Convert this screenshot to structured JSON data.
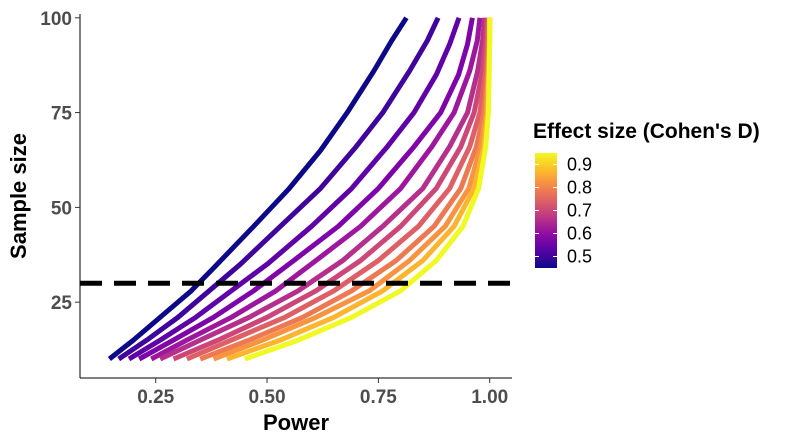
{
  "chart_data": {
    "type": "line",
    "xlabel": "Power",
    "ylabel": "Sample size",
    "xlim": [
      0.08,
      1.05
    ],
    "ylim": [
      5,
      101
    ],
    "x_ticks": [
      0.25,
      0.5,
      0.75,
      1.0
    ],
    "x_tick_labels": [
      "0.25",
      "0.50",
      "0.75",
      "1.00"
    ],
    "y_ticks": [
      25,
      50,
      75,
      100
    ],
    "y_tick_labels": [
      "25",
      "50",
      "75",
      "100"
    ],
    "grid": false,
    "legend": {
      "title": "Effect size (Cohen's D)",
      "position": "right",
      "type": "colorbar",
      "range": [
        0.45,
        0.95
      ],
      "ticks": [
        0.5,
        0.6,
        0.7,
        0.8,
        0.9
      ],
      "tick_labels": [
        "0.5",
        "0.6",
        "0.7",
        "0.8",
        "0.9"
      ],
      "palette": "plasma-truncated",
      "colors": [
        "#0d0887",
        "#5402a3",
        "#8b0aa5",
        "#b93289",
        "#db5c68",
        "#f48849",
        "#febd2a",
        "#f0f921"
      ]
    },
    "reference_line": {
      "y": 30,
      "style": "dashed",
      "color": "#000000"
    },
    "series": [
      {
        "d": 0.45,
        "color": "#0d0887",
        "points": [
          [
            0.146,
            10
          ],
          [
            0.2,
            15
          ],
          [
            0.27,
            22
          ],
          [
            0.33,
            28
          ],
          [
            0.38,
            34
          ],
          [
            0.47,
            45
          ],
          [
            0.55,
            55
          ],
          [
            0.62,
            65
          ],
          [
            0.68,
            75
          ],
          [
            0.74,
            86
          ],
          [
            0.78,
            94
          ],
          [
            0.813,
            100
          ]
        ]
      },
      {
        "d": 0.5,
        "color": "#3f049c",
        "points": [
          [
            0.167,
            10
          ],
          [
            0.23,
            15
          ],
          [
            0.3,
            21
          ],
          [
            0.37,
            28
          ],
          [
            0.44,
            35
          ],
          [
            0.53,
            45
          ],
          [
            0.62,
            55
          ],
          [
            0.7,
            66
          ],
          [
            0.76,
            75
          ],
          [
            0.82,
            86
          ],
          [
            0.86,
            94
          ],
          [
            0.884,
            100
          ]
        ]
      },
      {
        "d": 0.55,
        "color": "#5f01a6",
        "points": [
          [
            0.19,
            10
          ],
          [
            0.26,
            15
          ],
          [
            0.34,
            21
          ],
          [
            0.42,
            28
          ],
          [
            0.5,
            35
          ],
          [
            0.6,
            45
          ],
          [
            0.69,
            55
          ],
          [
            0.77,
            66
          ],
          [
            0.83,
            75
          ],
          [
            0.88,
            85
          ],
          [
            0.91,
            93
          ],
          [
            0.931,
            100
          ]
        ]
      },
      {
        "d": 0.6,
        "color": "#7e03a8",
        "points": [
          [
            0.213,
            10
          ],
          [
            0.29,
            15
          ],
          [
            0.38,
            21
          ],
          [
            0.47,
            28
          ],
          [
            0.56,
            36
          ],
          [
            0.66,
            45
          ],
          [
            0.75,
            55
          ],
          [
            0.83,
            66
          ],
          [
            0.89,
            75
          ],
          [
            0.93,
            85
          ],
          [
            0.95,
            93
          ],
          [
            0.961,
            100
          ]
        ]
      },
      {
        "d": 0.65,
        "color": "#9c179e",
        "points": [
          [
            0.24,
            10
          ],
          [
            0.32,
            15
          ],
          [
            0.42,
            21
          ],
          [
            0.52,
            28
          ],
          [
            0.61,
            36
          ],
          [
            0.71,
            45
          ],
          [
            0.8,
            55
          ],
          [
            0.87,
            66
          ],
          [
            0.92,
            75
          ],
          [
            0.955,
            86
          ],
          [
            0.972,
            94
          ],
          [
            0.978,
            100
          ]
        ]
      },
      {
        "d": 0.7,
        "color": "#b52f8c",
        "points": [
          [
            0.26,
            10
          ],
          [
            0.35,
            15
          ],
          [
            0.46,
            21
          ],
          [
            0.57,
            28
          ],
          [
            0.67,
            36
          ],
          [
            0.76,
            45
          ],
          [
            0.85,
            55
          ],
          [
            0.91,
            66
          ],
          [
            0.95,
            75
          ],
          [
            0.973,
            86
          ],
          [
            0.984,
            94
          ],
          [
            0.989,
            100
          ]
        ]
      },
      {
        "d": 0.75,
        "color": "#cc4778",
        "points": [
          [
            0.29,
            10
          ],
          [
            0.39,
            15
          ],
          [
            0.5,
            21
          ],
          [
            0.61,
            28
          ],
          [
            0.71,
            36
          ],
          [
            0.8,
            45
          ],
          [
            0.88,
            55
          ],
          [
            0.935,
            66
          ],
          [
            0.965,
            75
          ],
          [
            0.984,
            86
          ],
          [
            0.991,
            94
          ],
          [
            0.994,
            100
          ]
        ]
      },
      {
        "d": 0.8,
        "color": "#de5f65",
        "points": [
          [
            0.32,
            10
          ],
          [
            0.42,
            15
          ],
          [
            0.54,
            21
          ],
          [
            0.65,
            28
          ],
          [
            0.75,
            36
          ],
          [
            0.84,
            45
          ],
          [
            0.91,
            55
          ],
          [
            0.955,
            66
          ],
          [
            0.978,
            75
          ],
          [
            0.991,
            86
          ],
          [
            0.995,
            94
          ],
          [
            0.997,
            100
          ]
        ]
      },
      {
        "d": 0.85,
        "color": "#ed7953",
        "points": [
          [
            0.35,
            10
          ],
          [
            0.46,
            15
          ],
          [
            0.58,
            21
          ],
          [
            0.69,
            28
          ],
          [
            0.79,
            36
          ],
          [
            0.875,
            45
          ],
          [
            0.935,
            55
          ],
          [
            0.97,
            66
          ],
          [
            0.987,
            75
          ],
          [
            0.995,
            86
          ],
          [
            0.998,
            94
          ],
          [
            0.999,
            100
          ]
        ]
      },
      {
        "d": 0.9,
        "color": "#f89441",
        "points": [
          [
            0.38,
            10
          ],
          [
            0.49,
            15
          ],
          [
            0.61,
            21
          ],
          [
            0.73,
            28
          ],
          [
            0.82,
            36
          ],
          [
            0.9,
            45
          ],
          [
            0.953,
            55
          ],
          [
            0.98,
            66
          ],
          [
            0.992,
            75
          ],
          [
            0.997,
            86
          ],
          [
            0.999,
            94
          ],
          [
            1.0,
            100
          ]
        ]
      },
      {
        "d": 0.93,
        "color": "#fdb42f",
        "points": [
          [
            0.41,
            10
          ],
          [
            0.53,
            15
          ],
          [
            0.65,
            21
          ],
          [
            0.76,
            28
          ],
          [
            0.85,
            36
          ],
          [
            0.92,
            45
          ],
          [
            0.965,
            55
          ],
          [
            0.987,
            66
          ],
          [
            0.995,
            75
          ],
          [
            0.998,
            86
          ],
          [
            1.0,
            94
          ],
          [
            1.0,
            100
          ]
        ]
      },
      {
        "d": 0.95,
        "color": "#f0f921",
        "points": [
          [
            0.45,
            10
          ],
          [
            0.57,
            15
          ],
          [
            0.69,
            21
          ],
          [
            0.8,
            28
          ],
          [
            0.88,
            36
          ],
          [
            0.94,
            45
          ],
          [
            0.975,
            55
          ],
          [
            0.991,
            66
          ],
          [
            0.997,
            75
          ],
          [
            0.999,
            86
          ],
          [
            1.0,
            94
          ],
          [
            1.0,
            100
          ]
        ]
      }
    ]
  }
}
